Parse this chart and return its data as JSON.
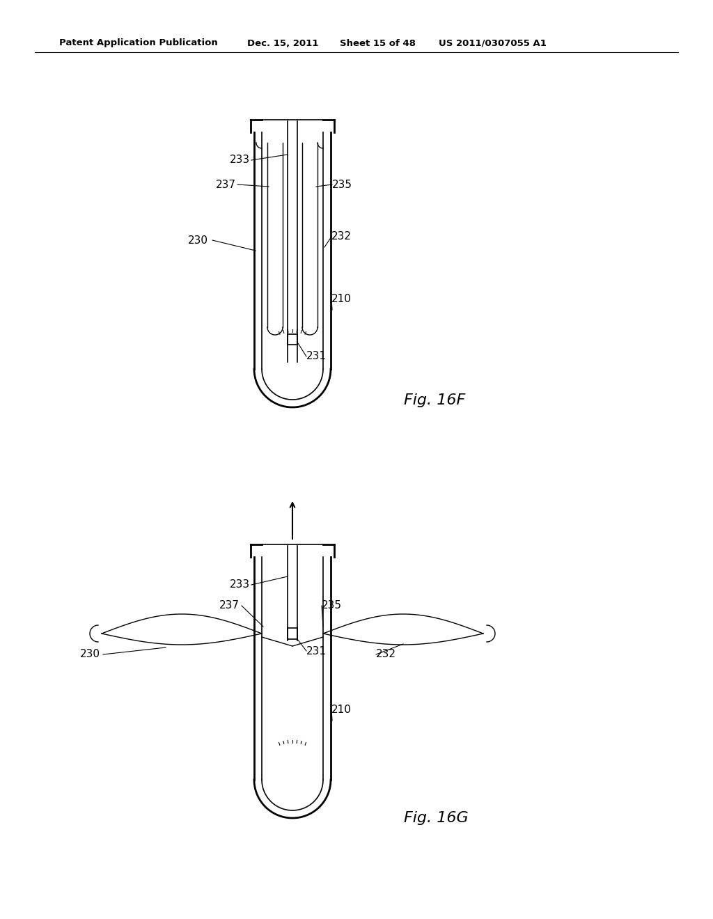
{
  "background_color": "#ffffff",
  "line_color": "#000000",
  "header_text": "Patent Application Publication",
  "header_date": "Dec. 15, 2011",
  "header_sheet": "Sheet 15 of 48",
  "header_patent": "US 2011/0307055 A1",
  "fig16f_label": "Fig. 16F",
  "fig16g_label": "Fig. 16G"
}
